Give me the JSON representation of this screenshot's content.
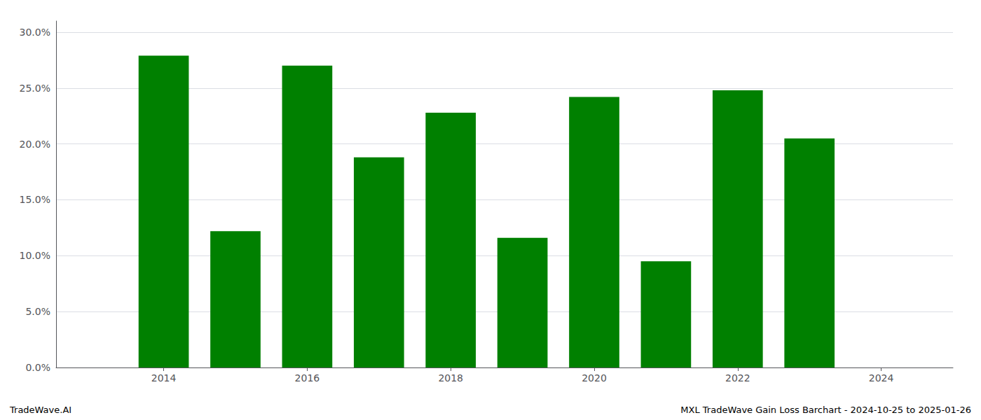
{
  "chart_data": {
    "type": "bar",
    "x": [
      2014,
      2015,
      2016,
      2017,
      2018,
      2019,
      2020,
      2021,
      2022,
      2023
    ],
    "values": [
      0.279,
      0.122,
      0.27,
      0.188,
      0.228,
      0.116,
      0.242,
      0.095,
      0.248,
      0.205
    ],
    "color": "#008000",
    "xlim": [
      2012.5,
      2025.0
    ],
    "xticks": [
      2014,
      2016,
      2018,
      2020,
      2022,
      2024
    ],
    "ylim": [
      0,
      0.31
    ],
    "yticks": [
      {
        "value": 0,
        "label": "0.0%"
      },
      {
        "value": 0.05,
        "label": "5.0%"
      },
      {
        "value": 0.1,
        "label": "10.0%"
      },
      {
        "value": 0.15,
        "label": "15.0%"
      },
      {
        "value": 0.2,
        "label": "20.0%"
      },
      {
        "value": 0.25,
        "label": "25.0%"
      },
      {
        "value": 0.3,
        "label": "30.0%"
      }
    ],
    "grid": true,
    "annotations": [
      "TradeWave.AI",
      "MXL TradeWave Gain Loss Barchart - 2024-10-25 to 2025-01-26"
    ]
  }
}
